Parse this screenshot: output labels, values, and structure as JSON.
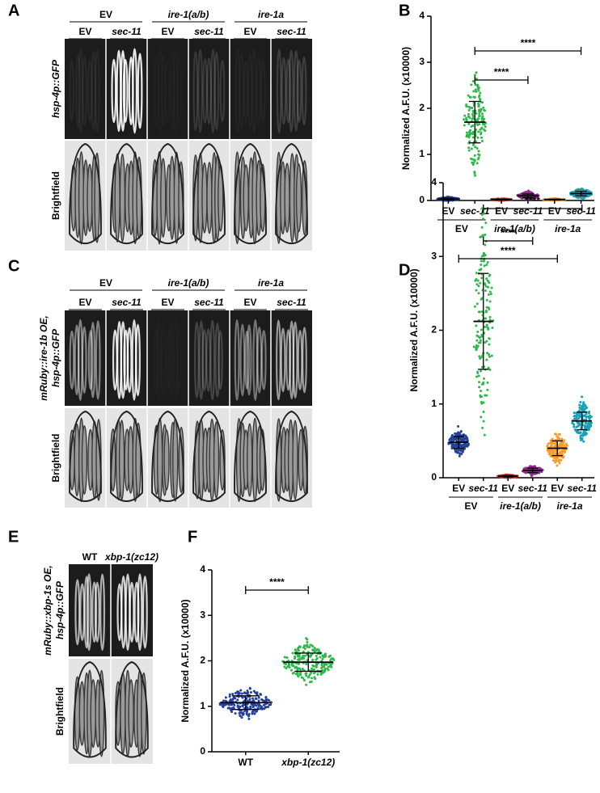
{
  "panels": [
    {
      "letter": "A",
      "groups": [
        "EV",
        "ire-1(a/b)",
        "ire-1a"
      ],
      "columns": [
        "EV",
        "sec-11",
        "EV",
        "sec-11",
        "EV",
        "sec-11"
      ],
      "rows": [
        [
          "hsp-4p::GFP"
        ],
        [
          "Brightfield"
        ]
      ]
    },
    {
      "letter": "C",
      "groups": [
        "EV",
        "ire-1(a/b)",
        "ire-1a"
      ],
      "columns": [
        "EV",
        "sec-11",
        "EV",
        "sec-11",
        "EV",
        "sec-11"
      ],
      "rows": [
        [
          "mRuby::ire-1b OE,",
          "hsp-4p::GFP"
        ],
        [
          "Brightfield"
        ]
      ]
    },
    {
      "letter": "E",
      "columns": [
        "WT",
        "xbp-1(zc12)"
      ],
      "rows": [
        [
          "mRuby::xbp-1s OE,",
          "hsp-4p::GFP"
        ],
        [
          "Brightfield"
        ]
      ]
    }
  ],
  "chart_data": [
    {
      "type": "dotplot",
      "letter": "B",
      "ylabel": "Normalized A.F.U. (x10000)",
      "categories": [
        "EV",
        "sec-11",
        "EV",
        "sec-11",
        "EV",
        "sec-11"
      ],
      "groups": [
        "EV",
        "ire-1(a/b)",
        "ire-1a"
      ],
      "values": [
        0.03,
        1.7,
        0.02,
        0.1,
        0.02,
        0.15
      ],
      "errors": [
        0.02,
        0.45,
        0.01,
        0.04,
        0.01,
        0.05
      ],
      "colors": [
        "#23409a",
        "#2fb84c",
        "#c0392b",
        "#8e2d8e",
        "#f39c34",
        "#1aa0b8"
      ],
      "ylim": [
        0,
        4
      ],
      "yticks": [
        0,
        1,
        2,
        3,
        4
      ],
      "significance": [
        {
          "between": [
            1,
            5
          ],
          "label": "****"
        },
        {
          "between": [
            1,
            3
          ],
          "label": "****"
        }
      ]
    },
    {
      "type": "dotplot",
      "letter": "D",
      "ylabel": "Normalized A.F.U. (x10000)",
      "categories": [
        "EV",
        "sec-11",
        "EV",
        "sec-11",
        "EV",
        "sec-11"
      ],
      "groups": [
        "EV",
        "ire-1(a/b)",
        "ire-1a"
      ],
      "values": [
        0.48,
        2.12,
        0.02,
        0.1,
        0.4,
        0.77
      ],
      "errors": [
        0.08,
        0.65,
        0.01,
        0.03,
        0.1,
        0.12
      ],
      "colors": [
        "#23409a",
        "#2fb84c",
        "#c0392b",
        "#8e2d8e",
        "#f39c34",
        "#1aa0b8"
      ],
      "ylim": [
        0,
        4
      ],
      "yticks": [
        0,
        1,
        2,
        3,
        4
      ],
      "significance": [
        {
          "between": [
            1,
            5
          ],
          "label": "****"
        },
        {
          "between": [
            1,
            3
          ],
          "label": "****"
        },
        {
          "between": [
            0,
            4
          ],
          "label": "****"
        }
      ]
    },
    {
      "type": "dotplot",
      "letter": "F",
      "ylabel": "Normalized A.F.U. (x10000)",
      "categories": [
        "WT",
        "xbp-1(zc12)"
      ],
      "values": [
        1.08,
        1.97
      ],
      "errors": [
        0.15,
        0.2
      ],
      "colors": [
        "#23409a",
        "#2fb84c"
      ],
      "ylim": [
        0,
        4
      ],
      "yticks": [
        0,
        1,
        2,
        3,
        4
      ],
      "significance": [
        {
          "between": [
            0,
            1
          ],
          "label": "****"
        }
      ]
    }
  ]
}
